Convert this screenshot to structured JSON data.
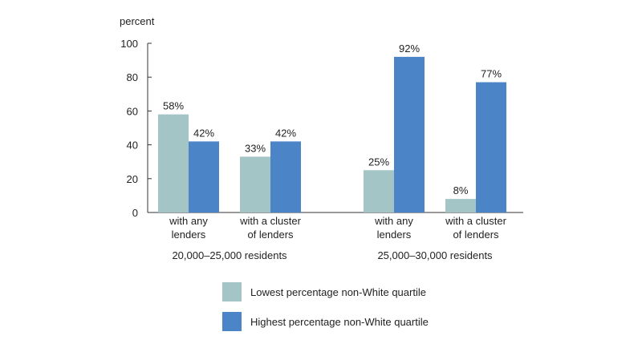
{
  "chart_data": {
    "type": "bar",
    "ylabel": "percent",
    "ylim": [
      0,
      100
    ],
    "yticks": [
      0,
      20,
      40,
      60,
      80,
      100
    ],
    "grid": false,
    "legend_position": "bottom",
    "groups": [
      {
        "name": "20,000–25,000 residents",
        "categories": [
          {
            "label_lines": [
              "with any",
              "lenders"
            ],
            "values": [
              58,
              42
            ],
            "labels": [
              "58%",
              "42%"
            ]
          },
          {
            "label_lines": [
              "with a cluster",
              "of lenders"
            ],
            "values": [
              33,
              42
            ],
            "labels": [
              "33%",
              "42%"
            ]
          }
        ]
      },
      {
        "name": "25,000–30,000 residents",
        "categories": [
          {
            "label_lines": [
              "with any",
              "lenders"
            ],
            "values": [
              25,
              92
            ],
            "labels": [
              "25%",
              "92%"
            ]
          },
          {
            "label_lines": [
              "with a cluster",
              "of lenders"
            ],
            "values": [
              8,
              77
            ],
            "labels": [
              "8%",
              "77%"
            ]
          }
        ]
      }
    ],
    "series": [
      {
        "name": "Lowest percentage non-White quartile",
        "color": "#a3c5c6"
      },
      {
        "name": "Highest percentage non-White quartile",
        "color": "#4b84c7"
      }
    ]
  }
}
